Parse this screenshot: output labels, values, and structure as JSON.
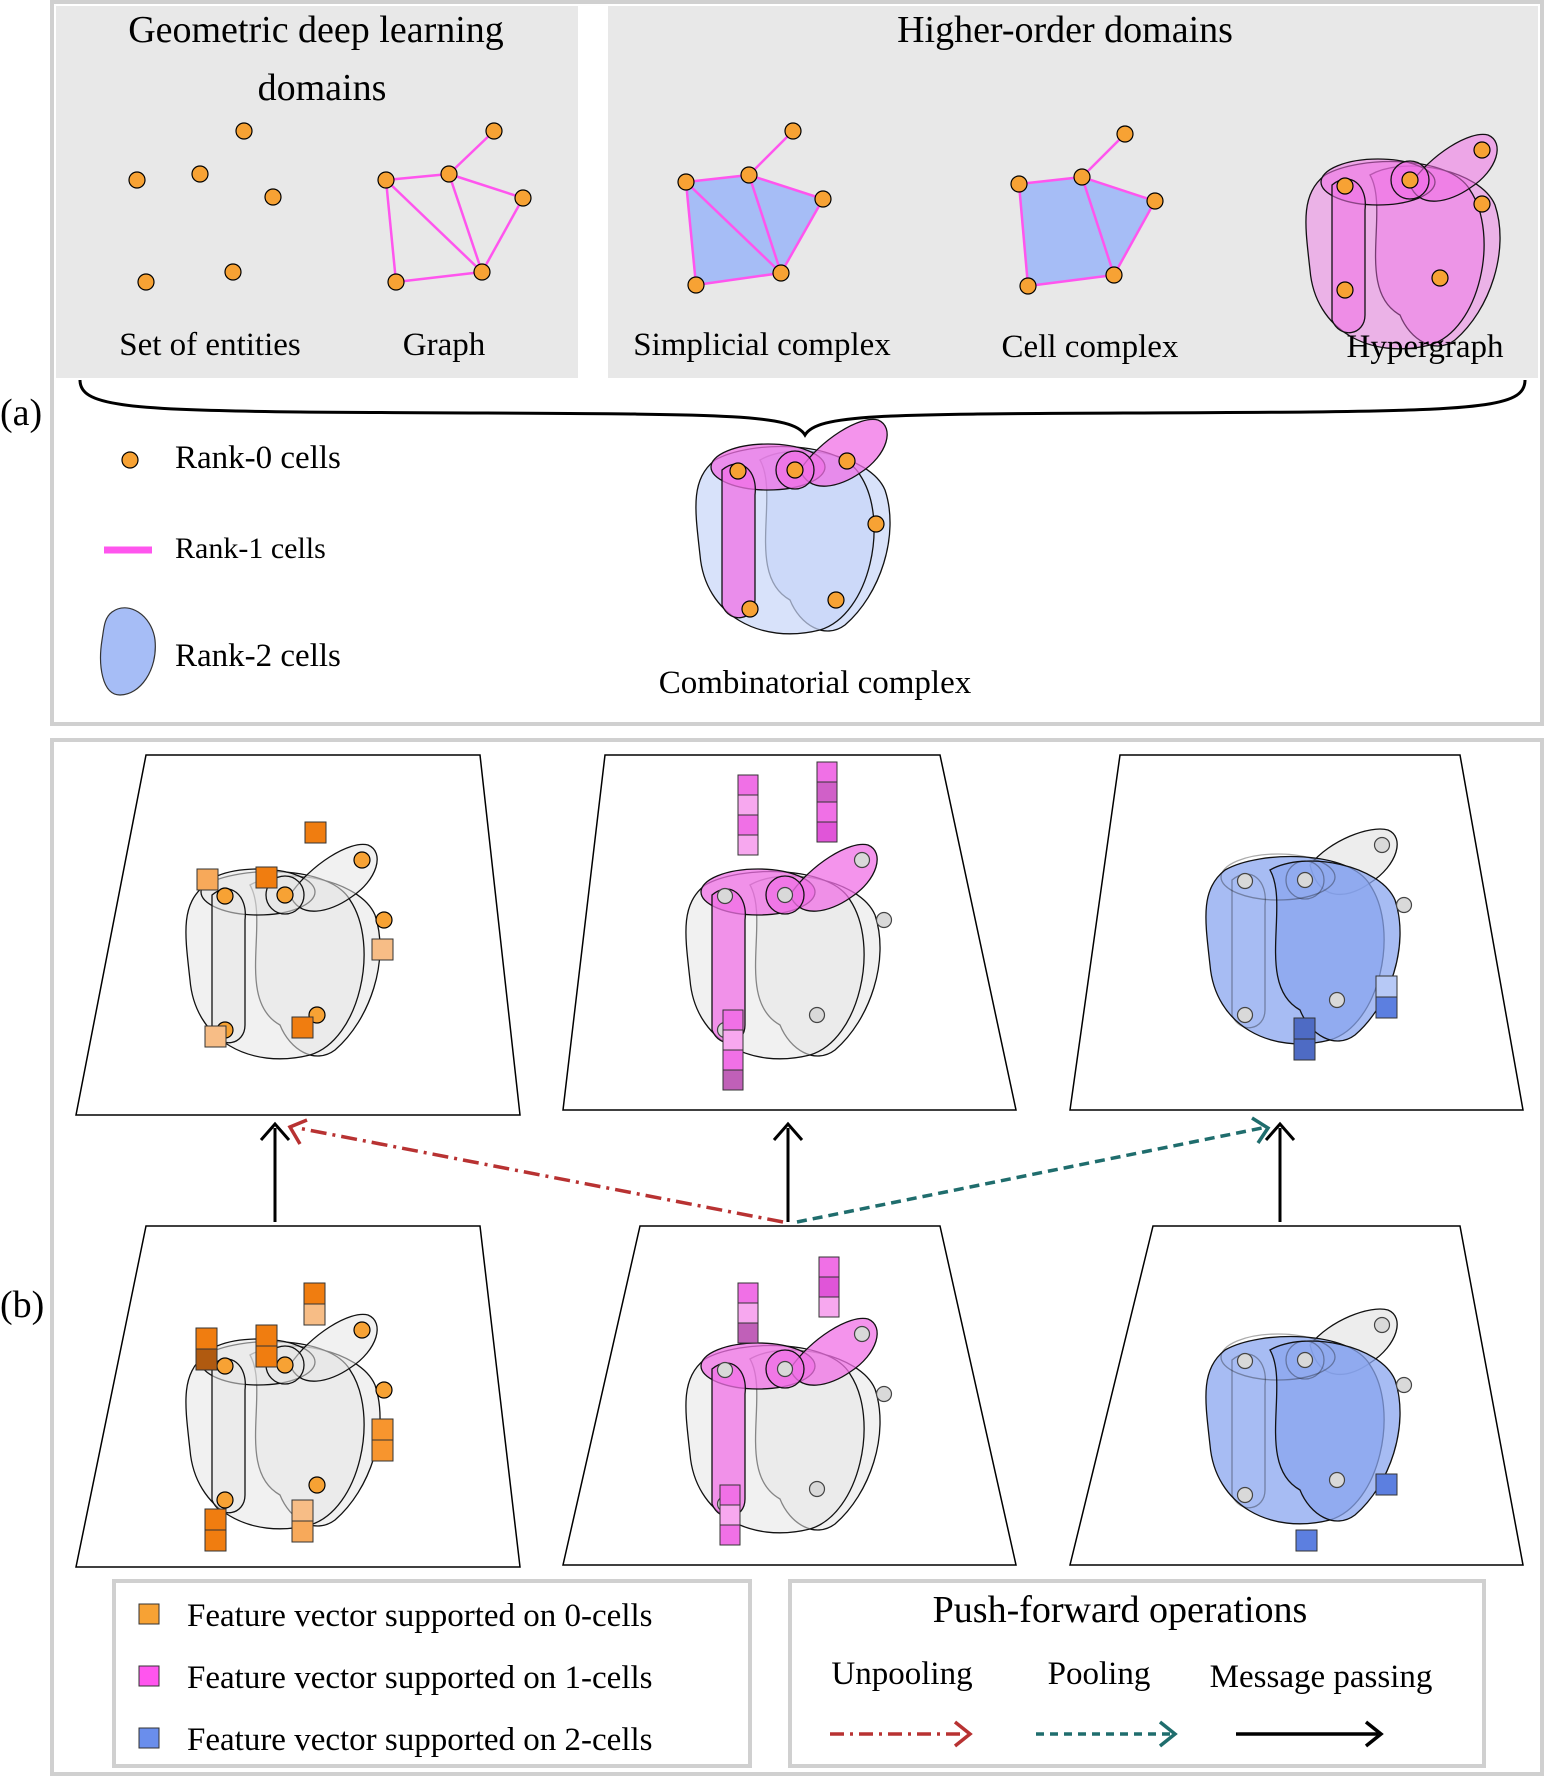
{
  "panel_a": {
    "label": "(a)",
    "gdl_title_line1": "Geometric deep learning",
    "gdl_title_line2": "domains",
    "higher_order_title": "Higher-order domains",
    "domains": {
      "set": "Set of entities",
      "graph": "Graph",
      "simplicial": "Simplicial complex",
      "cell": "Cell complex",
      "hypergraph": "Hypergraph"
    },
    "legend": {
      "rank0": "Rank-0 cells",
      "rank1": "Rank-1 cells",
      "rank2": "Rank-2 cells"
    },
    "combinatorial": "Combinatorial complex"
  },
  "panel_b": {
    "label": "(b)",
    "feature_legend": {
      "f0": "Feature vector supported on 0-cells",
      "f1": "Feature vector supported on 1-cells",
      "f2": "Feature vector supported on 2-cells"
    },
    "push_forward": {
      "title": "Push-forward operations",
      "unpooling": "Unpooling",
      "pooling": "Pooling",
      "message_passing": "Message passing"
    }
  },
  "colors": {
    "node": "#f7a234",
    "edge": "#ff55ee",
    "face": "#a6bdf6",
    "unpooling": "#b83232",
    "pooling": "#1f6d6d",
    "panel_gray": "#e8e8e8"
  }
}
